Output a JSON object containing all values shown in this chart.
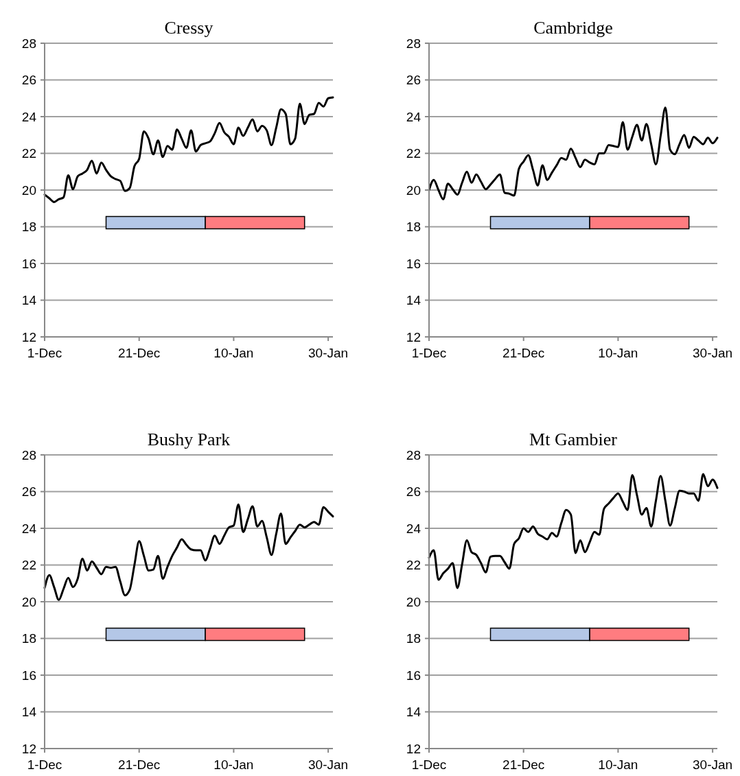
{
  "chart_data": [
    {
      "type": "line",
      "title": "Cressy",
      "ylim": [
        12,
        28
      ],
      "yticks": [
        12,
        14,
        16,
        18,
        20,
        22,
        24,
        26,
        28
      ],
      "grid": "y",
      "line_style": "solid",
      "marker": "none",
      "categories": [
        "1-Dec",
        null,
        null,
        null,
        null,
        null,
        null,
        null,
        null,
        null,
        null,
        null,
        null,
        null,
        null,
        null,
        null,
        null,
        null,
        null,
        "21-Dec",
        null,
        null,
        null,
        null,
        null,
        null,
        null,
        null,
        null,
        null,
        null,
        null,
        null,
        null,
        null,
        null,
        null,
        null,
        null,
        "10-Jan",
        null,
        null,
        null,
        null,
        null,
        null,
        null,
        null,
        null,
        null,
        null,
        null,
        null,
        null,
        null,
        null,
        null,
        null,
        null,
        "30-Jan",
        null
      ],
      "series": [
        {
          "color": "#000000",
          "values": [
            19.75,
            19.55,
            19.35,
            19.5,
            19.6,
            20.8,
            20.05,
            20.75,
            20.9,
            21.1,
            21.6,
            20.9,
            21.5,
            21.1,
            20.75,
            20.6,
            20.5,
            19.95,
            20.1,
            21.3,
            21.7,
            23.2,
            22.8,
            21.95,
            22.7,
            21.8,
            22.4,
            22.2,
            23.3,
            22.8,
            22.3,
            23.25,
            22.1,
            22.45,
            22.55,
            22.65,
            23.1,
            23.65,
            23.15,
            22.9,
            22.5,
            23.4,
            22.95,
            23.4,
            23.85,
            23.2,
            23.5,
            23.25,
            22.45,
            23.4,
            24.4,
            24.15,
            22.5,
            22.8,
            24.7,
            23.6,
            24.1,
            24.15,
            24.75,
            24.55,
            25.0,
            25.05
          ]
        }
      ]
    },
    {
      "type": "line",
      "title": "Cambridge",
      "ylim": [
        12,
        28
      ],
      "yticks": [
        12,
        14,
        16,
        18,
        20,
        22,
        24,
        26,
        28
      ],
      "grid": "y",
      "line_style": "solid",
      "marker": "none",
      "categories": [
        "1-Dec",
        null,
        null,
        null,
        null,
        null,
        null,
        null,
        null,
        null,
        null,
        null,
        null,
        null,
        null,
        null,
        null,
        null,
        null,
        null,
        "21-Dec",
        null,
        null,
        null,
        null,
        null,
        null,
        null,
        null,
        null,
        null,
        null,
        null,
        null,
        null,
        null,
        null,
        null,
        null,
        null,
        "10-Jan",
        null,
        null,
        null,
        null,
        null,
        null,
        null,
        null,
        null,
        null,
        null,
        null,
        null,
        null,
        null,
        null,
        null,
        null,
        null,
        "30-Jan",
        null
      ],
      "series": [
        {
          "color": "#000000",
          "values": [
            20.0,
            20.55,
            20.0,
            19.5,
            20.35,
            20.05,
            19.75,
            20.4,
            21.0,
            20.4,
            20.85,
            20.45,
            20.05,
            20.3,
            20.6,
            20.85,
            19.85,
            19.8,
            19.7,
            21.15,
            21.55,
            21.9,
            21.1,
            20.25,
            21.35,
            20.55,
            20.95,
            21.35,
            21.75,
            21.65,
            22.25,
            21.75,
            21.25,
            21.65,
            21.5,
            21.4,
            22.0,
            22.0,
            22.45,
            22.4,
            22.35,
            23.7,
            22.2,
            22.9,
            23.55,
            22.7,
            23.6,
            22.5,
            21.4,
            22.95,
            24.5,
            22.2,
            21.95,
            22.5,
            23.0,
            22.3,
            22.9,
            22.7,
            22.5,
            22.85,
            22.55,
            22.85
          ]
        }
      ]
    },
    {
      "type": "line",
      "title": "Bushy Park",
      "ylim": [
        12,
        28
      ],
      "yticks": [
        12,
        14,
        16,
        18,
        20,
        22,
        24,
        26,
        28
      ],
      "grid": "y",
      "line_style": "solid",
      "marker": "none",
      "categories": [
        "1-Dec",
        null,
        null,
        null,
        null,
        null,
        null,
        null,
        null,
        null,
        null,
        null,
        null,
        null,
        null,
        null,
        null,
        null,
        null,
        null,
        "21-Dec",
        null,
        null,
        null,
        null,
        null,
        null,
        null,
        null,
        null,
        null,
        null,
        null,
        null,
        null,
        null,
        null,
        null,
        null,
        null,
        "10-Jan",
        null,
        null,
        null,
        null,
        null,
        null,
        null,
        null,
        null,
        null,
        null,
        null,
        null,
        null,
        null,
        null,
        null,
        null,
        null,
        "30-Jan",
        null
      ],
      "series": [
        {
          "color": "#000000",
          "values": [
            20.75,
            21.45,
            20.8,
            20.1,
            20.7,
            21.3,
            20.8,
            21.25,
            22.35,
            21.7,
            22.2,
            21.85,
            21.5,
            21.9,
            21.85,
            21.9,
            21.1,
            20.35,
            20.65,
            22.0,
            23.3,
            22.5,
            21.7,
            21.75,
            22.5,
            21.25,
            21.9,
            22.5,
            22.95,
            23.4,
            23.1,
            22.85,
            22.8,
            22.8,
            22.25,
            22.9,
            23.6,
            23.15,
            23.6,
            24.05,
            24.15,
            25.3,
            23.8,
            24.5,
            25.2,
            24.1,
            24.4,
            23.5,
            22.55,
            23.7,
            24.8,
            23.15,
            23.5,
            23.85,
            24.2,
            24.05,
            24.2,
            24.35,
            24.2,
            25.15,
            24.9,
            24.65
          ]
        }
      ]
    },
    {
      "type": "line",
      "title": "Mt Gambier",
      "ylim": [
        12,
        28
      ],
      "yticks": [
        12,
        14,
        16,
        18,
        20,
        22,
        24,
        26,
        28
      ],
      "grid": "y",
      "line_style": "solid",
      "marker": "none",
      "categories": [
        "1-Dec",
        null,
        null,
        null,
        null,
        null,
        null,
        null,
        null,
        null,
        null,
        null,
        null,
        null,
        null,
        null,
        null,
        null,
        null,
        null,
        "21-Dec",
        null,
        null,
        null,
        null,
        null,
        null,
        null,
        null,
        null,
        null,
        null,
        null,
        null,
        null,
        null,
        null,
        null,
        null,
        null,
        "10-Jan",
        null,
        null,
        null,
        null,
        null,
        null,
        null,
        null,
        null,
        null,
        null,
        null,
        null,
        null,
        null,
        null,
        null,
        null,
        null,
        "30-Jan",
        null
      ],
      "series": [
        {
          "color": "#000000",
          "values": [
            22.4,
            22.8,
            21.2,
            21.55,
            21.8,
            22.1,
            20.75,
            22.05,
            23.35,
            22.7,
            22.55,
            22.1,
            21.6,
            22.45,
            22.5,
            22.5,
            22.15,
            21.8,
            23.15,
            23.45,
            24.0,
            23.8,
            24.1,
            23.7,
            23.55,
            23.4,
            23.75,
            23.55,
            24.3,
            25.0,
            24.75,
            22.65,
            23.35,
            22.7,
            23.25,
            23.8,
            23.65,
            25.05,
            25.35,
            25.65,
            25.9,
            25.45,
            25.0,
            26.9,
            25.8,
            24.75,
            25.1,
            24.1,
            25.5,
            26.85,
            25.5,
            24.15,
            25.1,
            26.05,
            26.0,
            25.9,
            25.9,
            25.5,
            26.95,
            26.3,
            26.65,
            26.2
          ]
        }
      ]
    }
  ]
}
